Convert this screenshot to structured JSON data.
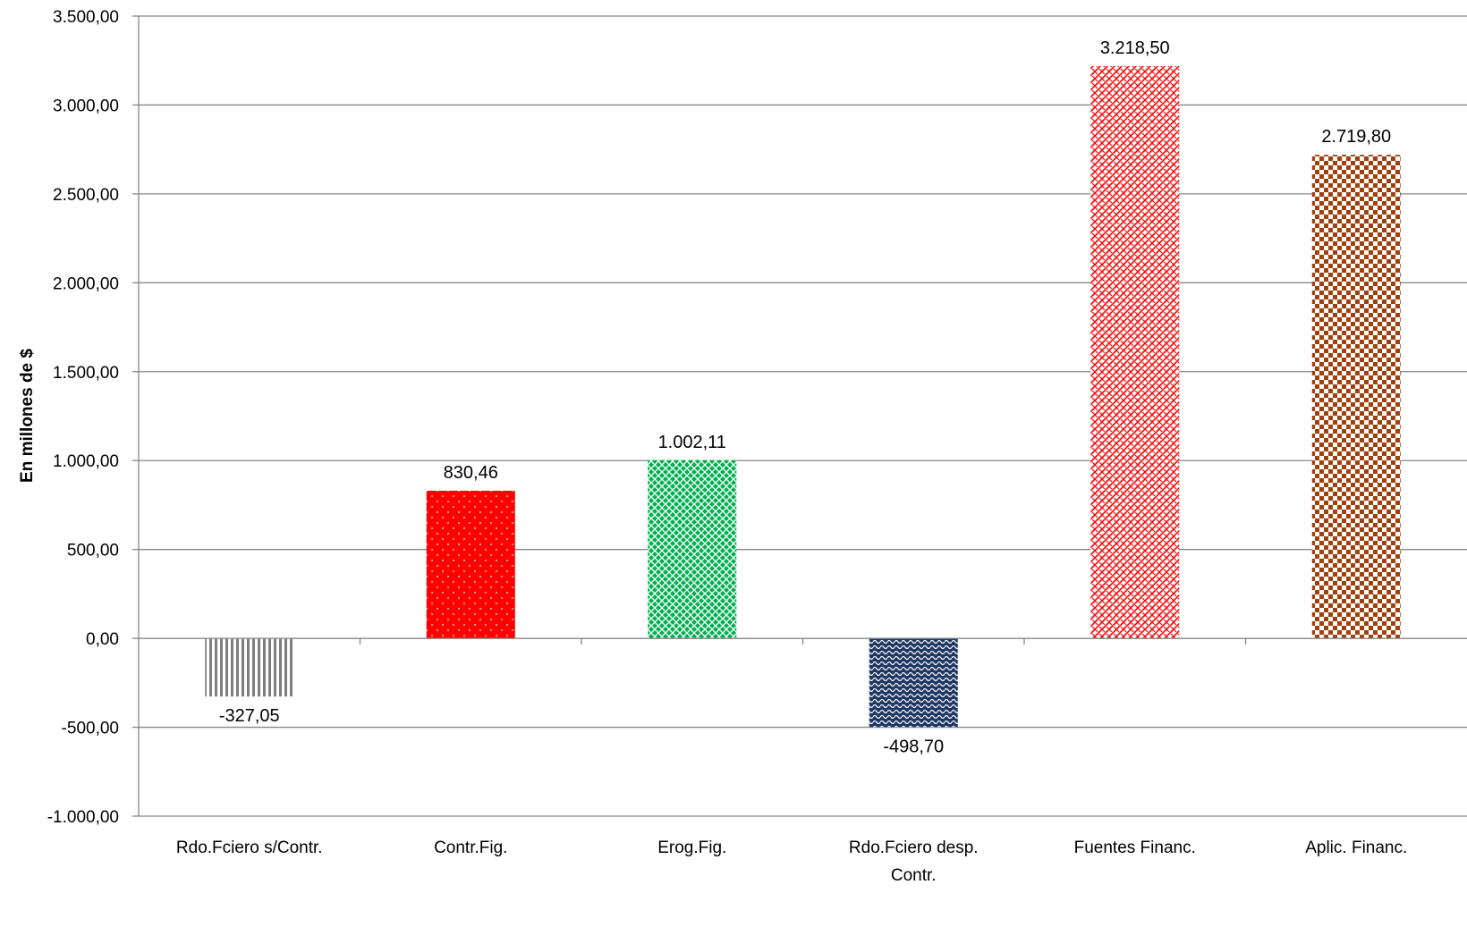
{
  "chart_data": {
    "type": "bar",
    "title": "",
    "xlabel": "",
    "ylabel": "En millones de $",
    "ylim": [
      -1000,
      3500
    ],
    "y_ticks": [
      -1000,
      -500,
      0,
      500,
      1000,
      1500,
      2000,
      2500,
      3000,
      3500
    ],
    "y_tick_labels": [
      "-1.000,00",
      "-500,00",
      "0,00",
      "500,00",
      "1.000,00",
      "1.500,00",
      "2.000,00",
      "2.500,00",
      "3.000,00",
      "3.500,00"
    ],
    "grid": true,
    "legend": "none",
    "categories": [
      [
        "Rdo.Fciero s/Contr."
      ],
      [
        "Contr.Fig."
      ],
      [
        "Erog.Fig."
      ],
      [
        "Rdo.Fciero desp.",
        "Contr."
      ],
      [
        "Fuentes Financ."
      ],
      [
        "Aplic. Financ."
      ]
    ],
    "values": [
      -327.05,
      830.46,
      1002.11,
      -498.7,
      3218.5,
      2719.8
    ],
    "value_labels": [
      "-327,05",
      "830,46",
      "1.002,11",
      "-498,70",
      "3.218,50",
      "2.719,80"
    ],
    "bar_styles": [
      {
        "pattern": "vertical-stripes",
        "fg": "#7f7f7f",
        "bg": "#ffffff"
      },
      {
        "pattern": "dots",
        "fg": "#ffffff",
        "bg": "#ff0000"
      },
      {
        "pattern": "lattice",
        "fg": "#ffffff",
        "bg": "#00b050"
      },
      {
        "pattern": "waves",
        "fg": "#ffffff",
        "bg": "#1f3864"
      },
      {
        "pattern": "weave",
        "fg": "#ff0000",
        "bg": "#ffffff"
      },
      {
        "pattern": "checker",
        "fg": "#a0400c",
        "bg": "#ffffff"
      }
    ]
  }
}
